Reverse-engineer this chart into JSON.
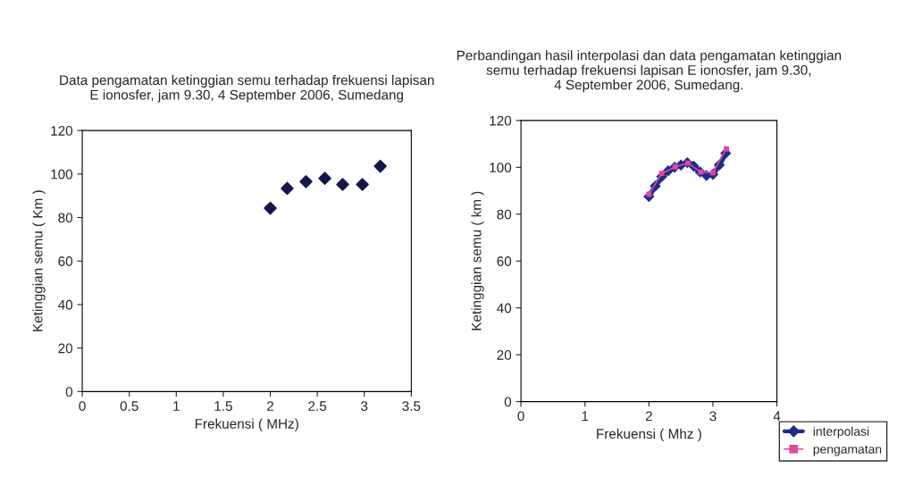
{
  "chart_data": [
    {
      "type": "scatter",
      "title": "Data pengamatan ketinggian semu terhadap frekuensi lapisan\nE ionosfer, jam 9.30, 4 September 2006, Sumedang",
      "xlabel": "Frekuensi ( MHz)",
      "ylabel": "Ketinggian semu ( Km )",
      "marker": "diamond",
      "grid": false,
      "legend": false,
      "series": [
        {
          "color": "#14164a",
          "x": [
            2.0,
            2.18,
            2.38,
            2.58,
            2.77,
            2.98,
            3.17
          ],
          "values": [
            84.3,
            93.4,
            96.5,
            98.0,
            95.2,
            95.2,
            103.6
          ]
        }
      ],
      "xlim": [
        0,
        3.5
      ],
      "xticks": [
        0,
        0.5,
        1,
        1.5,
        2,
        2.5,
        3,
        3.5
      ],
      "ylim": [
        0,
        120
      ],
      "yticks": [
        0,
        20,
        40,
        60,
        80,
        100,
        120
      ]
    },
    {
      "type": "line",
      "title": "Perbandingan hasil interpolasi dan data pengamatan ketinggian\nsemu terhadap frekuensi lapisan E ionosfer, jam 9.30,\n4 September 2006, Sumedang.",
      "xlabel": "Frekuensi ( Mhz )",
      "ylabel": "Ketinggian semu ( km )",
      "grid": false,
      "legend": "bottom right",
      "series": [
        {
          "name": "interpolasi",
          "color": "#1e2a8c",
          "marker": "diamond",
          "x": [
            2.0,
            2.1,
            2.2,
            2.3,
            2.4,
            2.5,
            2.6,
            2.7,
            2.8,
            2.9,
            3.0,
            3.1,
            3.2
          ],
          "values": [
            87.5,
            92,
            96,
            98.5,
            100,
            101,
            102,
            100.5,
            98,
            96.5,
            97,
            101,
            106
          ]
        },
        {
          "name": "pengamatan",
          "color": "#e0479e",
          "marker": "square",
          "x": [
            2.0,
            2.2,
            2.41,
            2.61,
            2.81,
            3.0,
            3.21
          ],
          "values": [
            88.5,
            97.4,
            100.2,
            101.8,
            98.0,
            97.7,
            107.9
          ]
        }
      ],
      "xlim": [
        0,
        4
      ],
      "xticks": [
        0,
        1,
        2,
        3,
        4
      ],
      "ylim": [
        0,
        120
      ],
      "yticks": [
        0,
        20,
        40,
        60,
        80,
        100,
        120
      ]
    }
  ]
}
